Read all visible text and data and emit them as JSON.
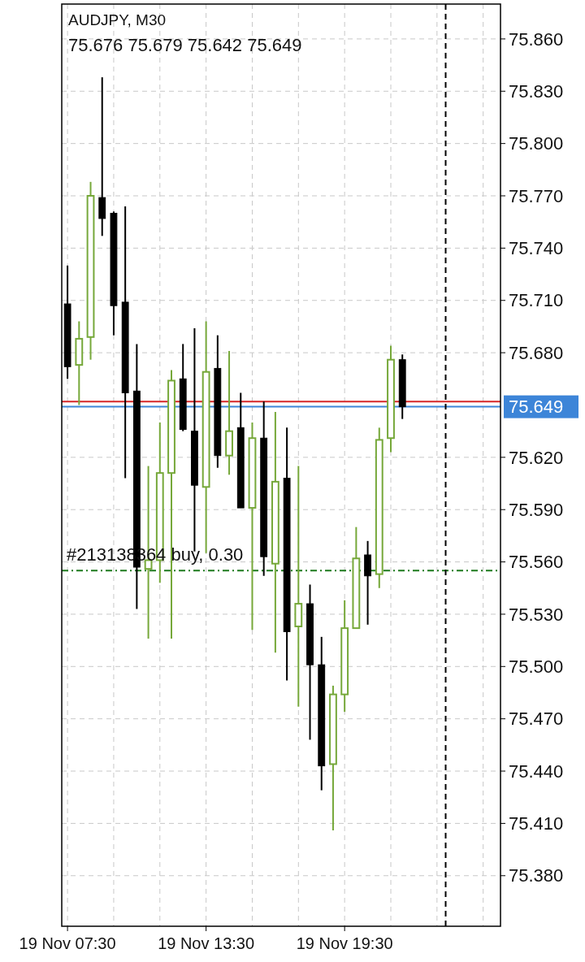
{
  "chart_data": {
    "type": "candlestick",
    "title": "AUDJPY, M30",
    "subtitle": "75.676 75.679 75.642 75.649",
    "categories": [
      "19 Nov 07:30",
      null,
      null,
      null,
      null,
      null,
      null,
      null,
      null,
      null,
      null,
      null,
      "19 Nov 13:30",
      null,
      null,
      null,
      null,
      null,
      null,
      null,
      null,
      null,
      null,
      null,
      "19 Nov 19:30",
      null,
      null,
      null,
      null,
      null,
      null,
      null,
      null,
      null,
      null,
      null,
      null,
      null
    ],
    "ohlc": [
      [
        75.708,
        75.73,
        75.665,
        75.672
      ],
      [
        75.673,
        75.698,
        75.65,
        75.688
      ],
      [
        75.689,
        75.778,
        75.676,
        75.77
      ],
      [
        75.769,
        75.838,
        75.747,
        75.757
      ],
      [
        75.76,
        75.761,
        75.69,
        75.707
      ],
      [
        75.709,
        75.764,
        75.608,
        75.657
      ],
      [
        75.658,
        75.685,
        75.533,
        75.557
      ],
      [
        75.556,
        75.615,
        75.516,
        75.561
      ],
      [
        75.561,
        75.64,
        75.548,
        75.611
      ],
      [
        75.611,
        75.67,
        75.516,
        75.664
      ],
      [
        75.665,
        75.685,
        75.635,
        75.636
      ],
      [
        75.635,
        75.694,
        75.566,
        75.604
      ],
      [
        75.603,
        75.698,
        75.565,
        75.669
      ],
      [
        75.671,
        75.69,
        75.614,
        75.621
      ],
      [
        75.621,
        75.681,
        75.61,
        75.635
      ],
      [
        75.637,
        75.657,
        75.591,
        75.591
      ],
      [
        75.591,
        75.64,
        75.521,
        75.631
      ],
      [
        75.631,
        75.652,
        75.552,
        75.563
      ],
      [
        75.559,
        75.646,
        75.508,
        75.606
      ],
      [
        75.608,
        75.637,
        75.492,
        75.52
      ],
      [
        75.523,
        75.615,
        75.477,
        75.536
      ],
      [
        75.536,
        75.547,
        75.458,
        75.501
      ],
      [
        75.501,
        75.517,
        75.429,
        75.443
      ],
      [
        75.444,
        75.489,
        75.406,
        75.484
      ],
      [
        75.484,
        75.538,
        75.474,
        75.522
      ],
      [
        75.522,
        75.58,
        75.522,
        75.562
      ],
      [
        75.564,
        75.572,
        75.524,
        75.552
      ],
      [
        75.553,
        75.637,
        75.545,
        75.63
      ],
      [
        75.631,
        75.684,
        75.623,
        75.676
      ],
      [
        75.676,
        75.679,
        75.642,
        75.649
      ],
      null,
      null,
      null,
      null,
      null,
      null,
      null,
      null
    ],
    "colors": [
      "#000000",
      "#76a83a",
      "#76a83a",
      "#000000",
      "#000000",
      "#000000",
      "#000000",
      "#76a83a",
      "#76a83a",
      "#76a83a",
      "#000000",
      "#000000",
      "#76a83a",
      "#000000",
      "#76a83a",
      "#000000",
      "#76a83a",
      "#000000",
      "#76a83a",
      "#000000",
      "#76a83a",
      "#000000",
      "#000000",
      "#76a83a",
      "#76a83a",
      "#76a83a",
      "#000000",
      "#76a83a",
      "#76a83a",
      "#000000",
      null,
      null,
      null,
      null,
      null,
      null,
      null,
      null
    ],
    "ylim": [
      75.351,
      75.88
    ],
    "yticks": [
      {
        "value": 75.38,
        "label": "75.380"
      },
      {
        "value": 75.41,
        "label": "75.410"
      },
      {
        "value": 75.44,
        "label": "75.440"
      },
      {
        "value": 75.47,
        "label": "75.470"
      },
      {
        "value": 75.5,
        "label": "75.500"
      },
      {
        "value": 75.53,
        "label": "75.530"
      },
      {
        "value": 75.56,
        "label": "75.560"
      },
      {
        "value": 75.59,
        "label": "75.590"
      },
      {
        "value": 75.62,
        "label": "75.620"
      },
      {
        "value": 75.68,
        "label": "75.680"
      },
      {
        "value": 75.71,
        "label": "75.710"
      },
      {
        "value": 75.74,
        "label": "75.740"
      },
      {
        "value": 75.77,
        "label": "75.770"
      },
      {
        "value": 75.8,
        "label": "75.800"
      },
      {
        "value": 75.83,
        "label": "75.830"
      },
      {
        "value": 75.86,
        "label": "75.860"
      }
    ],
    "grid": true,
    "ref_lines": [
      {
        "axis": "y",
        "value": 75.652,
        "color": "#d62728",
        "line_style": "solid"
      },
      {
        "axis": "y",
        "value": 75.649,
        "label": "75.649",
        "color": "#3d85d8",
        "line_style": "solid"
      },
      {
        "axis": "y",
        "value": 75.555,
        "label": "#213138364 buy, 0.30",
        "color": "#1e7a1e",
        "line_style": "dashed"
      }
    ]
  }
}
